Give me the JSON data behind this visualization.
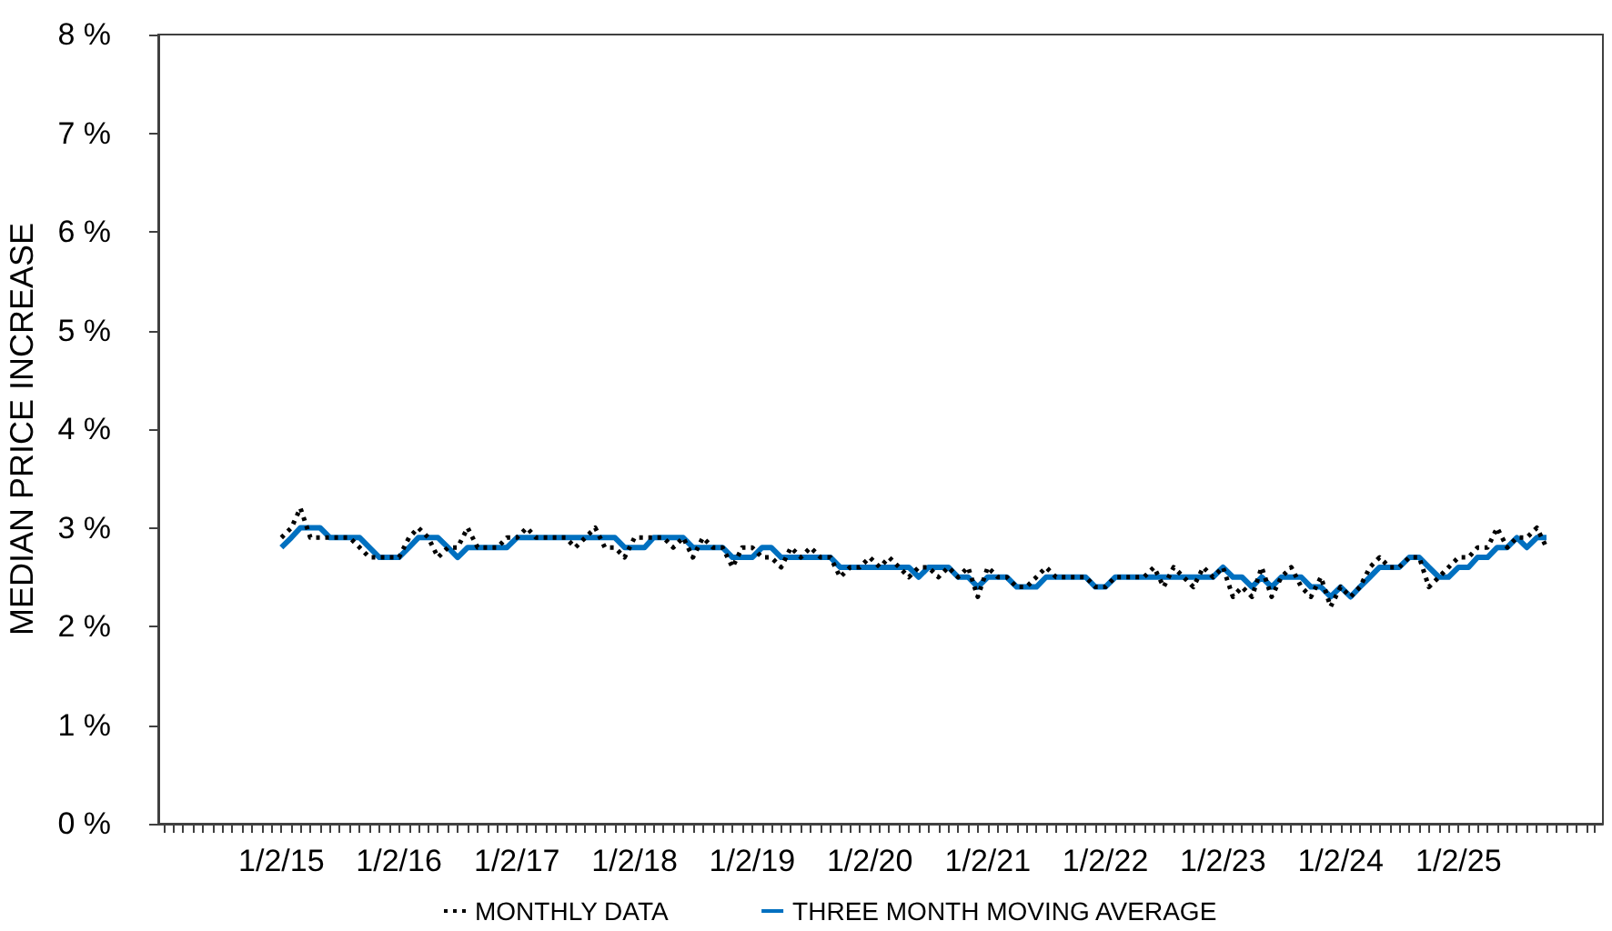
{
  "chart_data": {
    "type": "line",
    "ylabel": "MEDIAN PRICE INCREASE",
    "legend": "bottom",
    "marker": "none",
    "x": [
      "2015-01-02",
      "2015-02-02",
      "2015-03-02",
      "2015-04-02",
      "2015-05-02",
      "2015-06-02",
      "2015-07-02",
      "2015-08-02",
      "2015-09-02",
      "2015-10-02",
      "2015-11-02",
      "2015-12-02",
      "2016-01-02",
      "2016-02-02",
      "2016-03-02",
      "2016-04-02",
      "2016-05-02",
      "2016-06-02",
      "2016-07-02",
      "2016-08-02",
      "2016-09-02",
      "2016-10-02",
      "2016-11-02",
      "2016-12-02",
      "2017-01-02",
      "2017-02-02",
      "2017-03-02",
      "2017-04-02",
      "2017-05-02",
      "2017-06-02",
      "2017-07-02",
      "2017-08-02",
      "2017-09-02",
      "2017-10-02",
      "2017-11-02",
      "2017-12-02",
      "2018-01-02",
      "2018-02-02",
      "2018-03-02",
      "2018-04-02",
      "2018-05-02",
      "2018-06-02",
      "2018-07-02",
      "2018-08-02",
      "2018-09-02",
      "2018-10-02",
      "2018-11-02",
      "2018-12-02",
      "2019-01-02",
      "2019-02-02",
      "2019-03-02",
      "2019-04-02",
      "2019-05-02",
      "2019-06-02",
      "2019-07-02",
      "2019-08-02",
      "2019-09-02",
      "2019-10-02",
      "2019-11-02",
      "2019-12-02",
      "2020-01-02",
      "2020-02-02",
      "2020-03-02",
      "2020-04-02",
      "2020-05-02",
      "2020-06-02",
      "2020-07-02",
      "2020-08-02",
      "2020-09-02",
      "2020-10-02",
      "2020-11-02",
      "2020-12-02",
      "2021-01-02",
      "2021-02-02",
      "2021-03-02",
      "2021-04-02",
      "2021-05-02",
      "2021-06-02",
      "2021-07-02",
      "2021-08-02",
      "2021-09-02",
      "2021-10-02",
      "2021-11-02",
      "2021-12-02",
      "2022-01-02",
      "2022-02-02",
      "2022-03-02",
      "2022-04-02",
      "2022-05-02",
      "2022-06-02",
      "2022-07-02",
      "2022-08-02",
      "2022-09-02",
      "2022-10-02",
      "2022-11-02",
      "2022-12-02",
      "2023-01-02",
      "2023-02-02",
      "2023-03-02",
      "2023-04-02",
      "2023-05-02",
      "2023-06-02",
      "2023-07-02",
      "2023-08-02",
      "2023-09-02",
      "2023-10-02",
      "2023-11-02",
      "2023-12-02",
      "2024-01-02",
      "2024-02-02",
      "2024-03-02",
      "2024-04-02",
      "2024-05-02",
      "2024-06-02",
      "2024-07-02",
      "2024-08-02",
      "2024-09-02",
      "2024-10-02",
      "2024-11-02",
      "2024-12-02",
      "2025-01-02",
      "2025-02-02",
      "2025-03-02",
      "2025-04-02",
      "2025-05-02",
      "2025-06-02",
      "2025-07-02",
      "2025-08-02",
      "2025-09-02",
      "2025-10-02"
    ],
    "series": [
      {
        "name": "MONTHLY DATA",
        "color": "#000000",
        "line_style": "dotted",
        "values": [
          2.9,
          3.0,
          3.2,
          2.9,
          2.9,
          2.9,
          2.9,
          2.9,
          2.8,
          2.7,
          2.7,
          2.7,
          2.7,
          2.9,
          3.0,
          2.9,
          2.7,
          2.8,
          2.8,
          3.0,
          2.8,
          2.8,
          2.8,
          2.9,
          2.9,
          3.0,
          2.9,
          2.9,
          2.9,
          2.9,
          2.8,
          2.9,
          3.0,
          2.8,
          2.8,
          2.7,
          2.9,
          2.9,
          2.9,
          2.9,
          2.8,
          2.9,
          2.7,
          2.9,
          2.8,
          2.8,
          2.6,
          2.8,
          2.8,
          2.7,
          2.7,
          2.6,
          2.8,
          2.7,
          2.8,
          2.7,
          2.7,
          2.5,
          2.6,
          2.6,
          2.7,
          2.6,
          2.7,
          2.6,
          2.5,
          2.6,
          2.6,
          2.5,
          2.6,
          2.5,
          2.6,
          2.3,
          2.6,
          2.5,
          2.5,
          2.4,
          2.4,
          2.5,
          2.6,
          2.5,
          2.5,
          2.5,
          2.5,
          2.4,
          2.4,
          2.5,
          2.5,
          2.5,
          2.5,
          2.6,
          2.4,
          2.6,
          2.5,
          2.4,
          2.6,
          2.5,
          2.6,
          2.3,
          2.4,
          2.3,
          2.6,
          2.3,
          2.5,
          2.6,
          2.4,
          2.3,
          2.5,
          2.2,
          2.4,
          2.3,
          2.4,
          2.6,
          2.7,
          2.6,
          2.6,
          2.7,
          2.7,
          2.4,
          2.5,
          2.6,
          2.7,
          2.7,
          2.8,
          2.8,
          3.0,
          2.8,
          2.9,
          2.9,
          3.0,
          2.8
        ]
      },
      {
        "name": "THREE MONTH MOVING AVERAGE",
        "color": "#0070c0",
        "line_style": "solid",
        "values": [
          2.8,
          2.9,
          3.0,
          3.0,
          3.0,
          2.9,
          2.9,
          2.9,
          2.9,
          2.8,
          2.7,
          2.7,
          2.7,
          2.8,
          2.9,
          2.9,
          2.9,
          2.8,
          2.7,
          2.8,
          2.8,
          2.8,
          2.8,
          2.8,
          2.9,
          2.9,
          2.9,
          2.9,
          2.9,
          2.9,
          2.9,
          2.9,
          2.9,
          2.9,
          2.9,
          2.8,
          2.8,
          2.8,
          2.9,
          2.9,
          2.9,
          2.9,
          2.8,
          2.8,
          2.8,
          2.8,
          2.7,
          2.7,
          2.7,
          2.8,
          2.8,
          2.7,
          2.7,
          2.7,
          2.7,
          2.7,
          2.7,
          2.6,
          2.6,
          2.6,
          2.6,
          2.6,
          2.6,
          2.6,
          2.6,
          2.5,
          2.6,
          2.6,
          2.6,
          2.5,
          2.5,
          2.4,
          2.5,
          2.5,
          2.5,
          2.4,
          2.4,
          2.4,
          2.5,
          2.5,
          2.5,
          2.5,
          2.5,
          2.4,
          2.4,
          2.5,
          2.5,
          2.5,
          2.5,
          2.5,
          2.5,
          2.5,
          2.5,
          2.5,
          2.5,
          2.5,
          2.6,
          2.5,
          2.5,
          2.4,
          2.5,
          2.4,
          2.5,
          2.5,
          2.5,
          2.4,
          2.4,
          2.3,
          2.4,
          2.3,
          2.4,
          2.5,
          2.6,
          2.6,
          2.6,
          2.7,
          2.7,
          2.6,
          2.5,
          2.5,
          2.6,
          2.6,
          2.7,
          2.7,
          2.8,
          2.8,
          2.9,
          2.8,
          2.9,
          2.9
        ]
      }
    ],
    "xlim": [
      "2013-12-16",
      "2026-03-26"
    ],
    "xticks": [
      {
        "value": "2014-01-02",
        "label": null
      },
      {
        "value": "2014-02-02",
        "label": null
      },
      {
        "value": "2014-03-02",
        "label": null
      },
      {
        "value": "2014-04-02",
        "label": null
      },
      {
        "value": "2014-05-02",
        "label": null
      },
      {
        "value": "2014-06-02",
        "label": null
      },
      {
        "value": "2014-07-02",
        "label": null
      },
      {
        "value": "2014-08-02",
        "label": null
      },
      {
        "value": "2014-09-02",
        "label": null
      },
      {
        "value": "2014-10-02",
        "label": null
      },
      {
        "value": "2014-11-02",
        "label": null
      },
      {
        "value": "2014-12-02",
        "label": null
      },
      {
        "value": "2015-01-02",
        "label": "1/2/15"
      },
      {
        "value": "2015-02-02",
        "label": null
      },
      {
        "value": "2015-03-02",
        "label": null
      },
      {
        "value": "2015-04-02",
        "label": null
      },
      {
        "value": "2015-05-02",
        "label": null
      },
      {
        "value": "2015-06-02",
        "label": null
      },
      {
        "value": "2015-07-02",
        "label": null
      },
      {
        "value": "2015-08-02",
        "label": null
      },
      {
        "value": "2015-09-02",
        "label": null
      },
      {
        "value": "2015-10-02",
        "label": null
      },
      {
        "value": "2015-11-02",
        "label": null
      },
      {
        "value": "2015-12-02",
        "label": null
      },
      {
        "value": "2016-01-02",
        "label": "1/2/16"
      },
      {
        "value": "2016-02-02",
        "label": null
      },
      {
        "value": "2016-03-02",
        "label": null
      },
      {
        "value": "2016-04-02",
        "label": null
      },
      {
        "value": "2016-05-02",
        "label": null
      },
      {
        "value": "2016-06-02",
        "label": null
      },
      {
        "value": "2016-07-02",
        "label": null
      },
      {
        "value": "2016-08-02",
        "label": null
      },
      {
        "value": "2016-09-02",
        "label": null
      },
      {
        "value": "2016-10-02",
        "label": null
      },
      {
        "value": "2016-11-02",
        "label": null
      },
      {
        "value": "2016-12-02",
        "label": null
      },
      {
        "value": "2017-01-02",
        "label": "1/2/17"
      },
      {
        "value": "2017-02-02",
        "label": null
      },
      {
        "value": "2017-03-02",
        "label": null
      },
      {
        "value": "2017-04-02",
        "label": null
      },
      {
        "value": "2017-05-02",
        "label": null
      },
      {
        "value": "2017-06-02",
        "label": null
      },
      {
        "value": "2017-07-02",
        "label": null
      },
      {
        "value": "2017-08-02",
        "label": null
      },
      {
        "value": "2017-09-02",
        "label": null
      },
      {
        "value": "2017-10-02",
        "label": null
      },
      {
        "value": "2017-11-02",
        "label": null
      },
      {
        "value": "2017-12-02",
        "label": null
      },
      {
        "value": "2018-01-02",
        "label": "1/2/18"
      },
      {
        "value": "2018-02-02",
        "label": null
      },
      {
        "value": "2018-03-02",
        "label": null
      },
      {
        "value": "2018-04-02",
        "label": null
      },
      {
        "value": "2018-05-02",
        "label": null
      },
      {
        "value": "2018-06-02",
        "label": null
      },
      {
        "value": "2018-07-02",
        "label": null
      },
      {
        "value": "2018-08-02",
        "label": null
      },
      {
        "value": "2018-09-02",
        "label": null
      },
      {
        "value": "2018-10-02",
        "label": null
      },
      {
        "value": "2018-11-02",
        "label": null
      },
      {
        "value": "2018-12-02",
        "label": null
      },
      {
        "value": "2019-01-02",
        "label": "1/2/19"
      },
      {
        "value": "2019-02-02",
        "label": null
      },
      {
        "value": "2019-03-02",
        "label": null
      },
      {
        "value": "2019-04-02",
        "label": null
      },
      {
        "value": "2019-05-02",
        "label": null
      },
      {
        "value": "2019-06-02",
        "label": null
      },
      {
        "value": "2019-07-02",
        "label": null
      },
      {
        "value": "2019-08-02",
        "label": null
      },
      {
        "value": "2019-09-02",
        "label": null
      },
      {
        "value": "2019-10-02",
        "label": null
      },
      {
        "value": "2019-11-02",
        "label": null
      },
      {
        "value": "2019-12-02",
        "label": null
      },
      {
        "value": "2020-01-02",
        "label": "1/2/20"
      },
      {
        "value": "2020-02-02",
        "label": null
      },
      {
        "value": "2020-03-02",
        "label": null
      },
      {
        "value": "2020-04-02",
        "label": null
      },
      {
        "value": "2020-05-02",
        "label": null
      },
      {
        "value": "2020-06-02",
        "label": null
      },
      {
        "value": "2020-07-02",
        "label": null
      },
      {
        "value": "2020-08-02",
        "label": null
      },
      {
        "value": "2020-09-02",
        "label": null
      },
      {
        "value": "2020-10-02",
        "label": null
      },
      {
        "value": "2020-11-02",
        "label": null
      },
      {
        "value": "2020-12-02",
        "label": null
      },
      {
        "value": "2021-01-02",
        "label": "1/2/21"
      },
      {
        "value": "2021-02-02",
        "label": null
      },
      {
        "value": "2021-03-02",
        "label": null
      },
      {
        "value": "2021-04-02",
        "label": null
      },
      {
        "value": "2021-05-02",
        "label": null
      },
      {
        "value": "2021-06-02",
        "label": null
      },
      {
        "value": "2021-07-02",
        "label": null
      },
      {
        "value": "2021-08-02",
        "label": null
      },
      {
        "value": "2021-09-02",
        "label": null
      },
      {
        "value": "2021-10-02",
        "label": null
      },
      {
        "value": "2021-11-02",
        "label": null
      },
      {
        "value": "2021-12-02",
        "label": null
      },
      {
        "value": "2022-01-02",
        "label": "1/2/22"
      },
      {
        "value": "2022-02-02",
        "label": null
      },
      {
        "value": "2022-03-02",
        "label": null
      },
      {
        "value": "2022-04-02",
        "label": null
      },
      {
        "value": "2022-05-02",
        "label": null
      },
      {
        "value": "2022-06-02",
        "label": null
      },
      {
        "value": "2022-07-02",
        "label": null
      },
      {
        "value": "2022-08-02",
        "label": null
      },
      {
        "value": "2022-09-02",
        "label": null
      },
      {
        "value": "2022-10-02",
        "label": null
      },
      {
        "value": "2022-11-02",
        "label": null
      },
      {
        "value": "2022-12-02",
        "label": null
      },
      {
        "value": "2023-01-02",
        "label": "1/2/23"
      },
      {
        "value": "2023-02-02",
        "label": null
      },
      {
        "value": "2023-03-02",
        "label": null
      },
      {
        "value": "2023-04-02",
        "label": null
      },
      {
        "value": "2023-05-02",
        "label": null
      },
      {
        "value": "2023-06-02",
        "label": null
      },
      {
        "value": "2023-07-02",
        "label": null
      },
      {
        "value": "2023-08-02",
        "label": null
      },
      {
        "value": "2023-09-02",
        "label": null
      },
      {
        "value": "2023-10-02",
        "label": null
      },
      {
        "value": "2023-11-02",
        "label": null
      },
      {
        "value": "2023-12-02",
        "label": null
      },
      {
        "value": "2024-01-02",
        "label": "1/2/24"
      },
      {
        "value": "2024-02-02",
        "label": null
      },
      {
        "value": "2024-03-02",
        "label": null
      },
      {
        "value": "2024-04-02",
        "label": null
      },
      {
        "value": "2024-05-02",
        "label": null
      },
      {
        "value": "2024-06-02",
        "label": null
      },
      {
        "value": "2024-07-02",
        "label": null
      },
      {
        "value": "2024-08-02",
        "label": null
      },
      {
        "value": "2024-09-02",
        "label": null
      },
      {
        "value": "2024-10-02",
        "label": null
      },
      {
        "value": "2024-11-02",
        "label": null
      },
      {
        "value": "2024-12-02",
        "label": null
      },
      {
        "value": "2025-01-02",
        "label": "1/2/25"
      },
      {
        "value": "2025-02-02",
        "label": null
      },
      {
        "value": "2025-03-02",
        "label": null
      },
      {
        "value": "2025-04-02",
        "label": null
      },
      {
        "value": "2025-05-02",
        "label": null
      },
      {
        "value": "2025-06-02",
        "label": null
      },
      {
        "value": "2025-07-02",
        "label": null
      },
      {
        "value": "2025-08-02",
        "label": null
      },
      {
        "value": "2025-09-02",
        "label": null
      },
      {
        "value": "2025-10-02",
        "label": null
      },
      {
        "value": "2025-11-02",
        "label": null
      },
      {
        "value": "2025-12-02",
        "label": null
      },
      {
        "value": "2026-01-02",
        "label": null
      },
      {
        "value": "2026-02-02",
        "label": null
      },
      {
        "value": "2026-03-02",
        "label": null
      }
    ],
    "ylim": [
      0,
      8
    ],
    "yticks": [
      {
        "value": 0,
        "label": "0 %"
      },
      {
        "value": 1,
        "label": "1 %"
      },
      {
        "value": 2,
        "label": "2 %"
      },
      {
        "value": 3,
        "label": "3 %"
      },
      {
        "value": 4,
        "label": "4 %"
      },
      {
        "value": 5,
        "label": "5 %"
      },
      {
        "value": 6,
        "label": "6 %"
      },
      {
        "value": 7,
        "label": "7 %"
      },
      {
        "value": 8,
        "label": "8 %"
      }
    ]
  }
}
